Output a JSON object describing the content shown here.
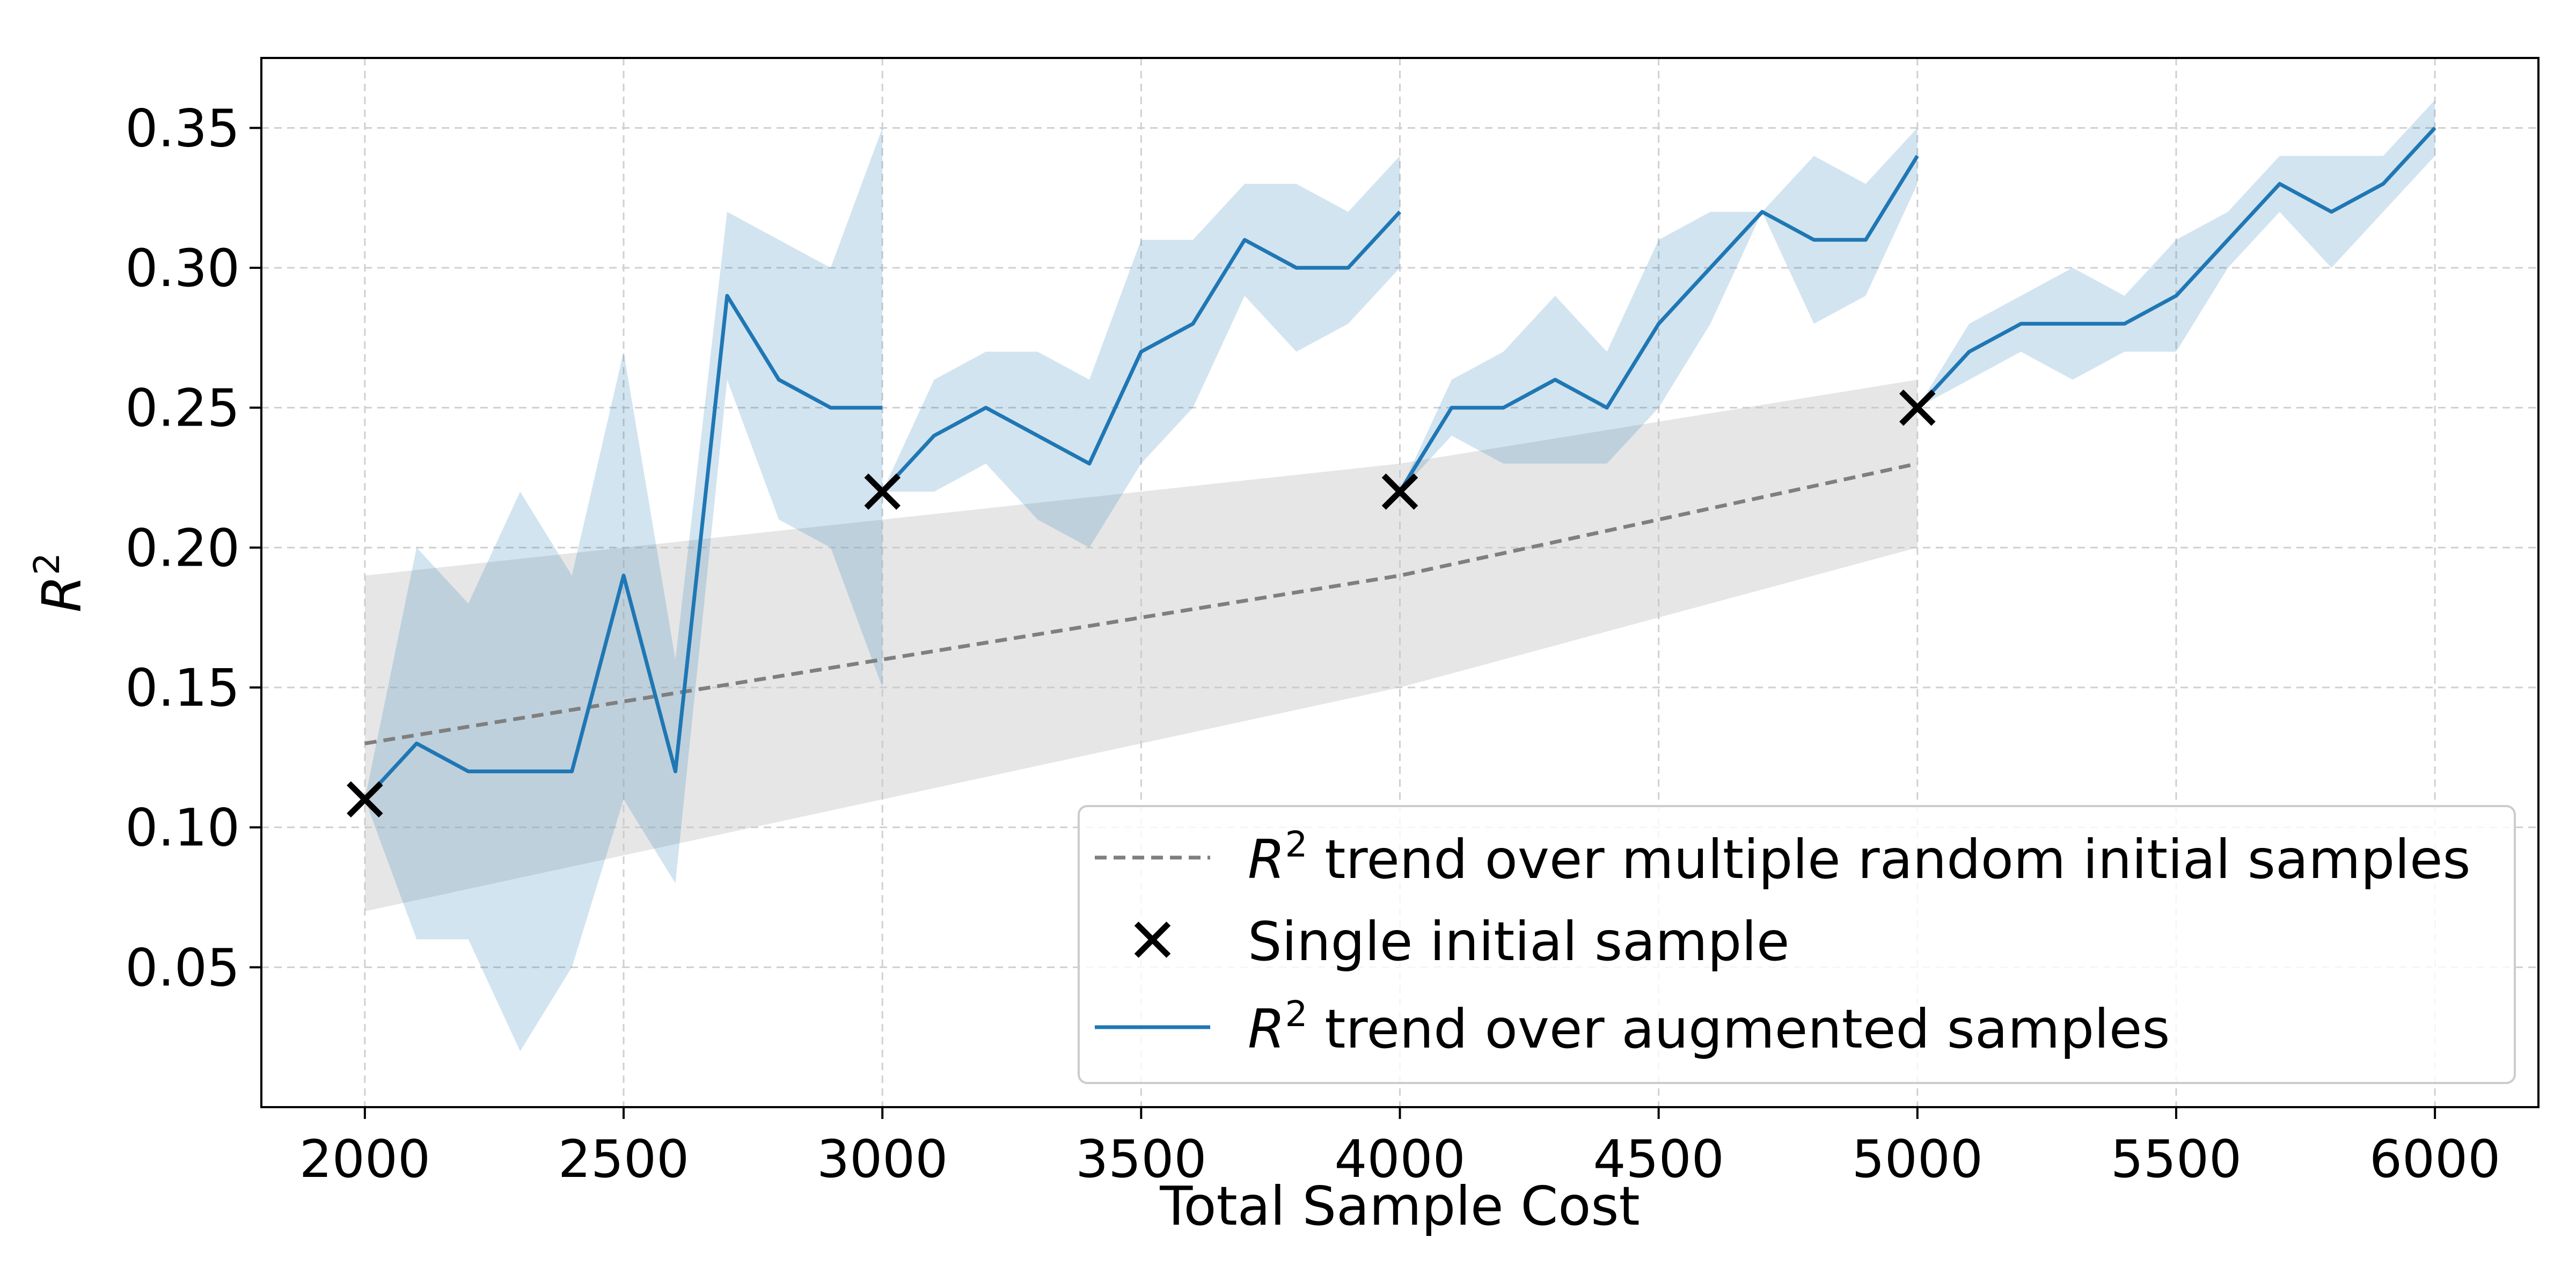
{
  "chart_data": {
    "type": "line",
    "xlabel": "Total Sample Cost",
    "ylabel": "R",
    "ylabel_sup": "2",
    "xlim": [
      1800,
      6200
    ],
    "ylim": [
      0.0,
      0.375
    ],
    "xticks": [
      2000,
      2500,
      3000,
      3500,
      4000,
      4500,
      5000,
      5500,
      6000
    ],
    "xtick_labels": [
      "2000",
      "2500",
      "3000",
      "3500",
      "4000",
      "4500",
      "5000",
      "5500",
      "6000"
    ],
    "yticks": [
      0.05,
      0.1,
      0.15,
      0.2,
      0.25,
      0.3,
      0.35
    ],
    "ytick_labels": [
      "0.05",
      "0.10",
      "0.15",
      "0.20",
      "0.25",
      "0.30",
      "0.35"
    ],
    "grid": true,
    "legend_position": "lower-right",
    "colors": {
      "augmented": "#1f77b4",
      "augmented_band": "#1f77b4",
      "trend": "#7f7f7f",
      "trend_band": "#c8c8c8",
      "marker": "#000000"
    },
    "legend": [
      {
        "prefix": "R",
        "sup": "2",
        "suffix": " trend over multiple random initial samples"
      },
      {
        "prefix": "",
        "sup": "",
        "suffix": "Single initial sample"
      },
      {
        "prefix": "R",
        "sup": "2",
        "suffix": " trend over augmented samples"
      }
    ],
    "trend_series": {
      "x": [
        2000,
        3000,
        4000,
        5000
      ],
      "y": [
        0.13,
        0.16,
        0.19,
        0.23
      ],
      "lower": [
        0.07,
        0.11,
        0.15,
        0.2
      ],
      "upper": [
        0.19,
        0.21,
        0.23,
        0.26
      ]
    },
    "initial_samples": {
      "x": [
        2000,
        3000,
        4000,
        5000
      ],
      "y": [
        0.11,
        0.22,
        0.22,
        0.25
      ]
    },
    "augmented_segments": [
      {
        "x": [
          2000,
          2100,
          2200,
          2300,
          2400,
          2500,
          2600,
          2700,
          2800,
          2900,
          3000
        ],
        "y": [
          0.11,
          0.13,
          0.12,
          0.12,
          0.12,
          0.19,
          0.12,
          0.29,
          0.26,
          0.25,
          0.25
        ],
        "lower": [
          0.11,
          0.06,
          0.06,
          0.02,
          0.05,
          0.11,
          0.08,
          0.26,
          0.21,
          0.2,
          0.15
        ],
        "upper": [
          0.11,
          0.2,
          0.18,
          0.22,
          0.19,
          0.27,
          0.16,
          0.32,
          0.31,
          0.3,
          0.35
        ]
      },
      {
        "x": [
          3000,
          3100,
          3200,
          3300,
          3400,
          3500,
          3600,
          3700,
          3800,
          3900,
          4000
        ],
        "y": [
          0.22,
          0.24,
          0.25,
          0.24,
          0.23,
          0.27,
          0.28,
          0.31,
          0.3,
          0.3,
          0.32
        ],
        "lower": [
          0.22,
          0.22,
          0.23,
          0.21,
          0.2,
          0.23,
          0.25,
          0.29,
          0.27,
          0.28,
          0.3
        ],
        "upper": [
          0.22,
          0.26,
          0.27,
          0.27,
          0.26,
          0.31,
          0.31,
          0.33,
          0.33,
          0.32,
          0.34
        ]
      },
      {
        "x": [
          4000,
          4100,
          4200,
          4300,
          4400,
          4500,
          4600,
          4700,
          4800,
          4900,
          5000
        ],
        "y": [
          0.22,
          0.25,
          0.25,
          0.26,
          0.25,
          0.28,
          0.3,
          0.32,
          0.31,
          0.31,
          0.34
        ],
        "lower": [
          0.22,
          0.24,
          0.23,
          0.23,
          0.23,
          0.25,
          0.28,
          0.32,
          0.28,
          0.29,
          0.33
        ],
        "upper": [
          0.22,
          0.26,
          0.27,
          0.29,
          0.27,
          0.31,
          0.32,
          0.32,
          0.34,
          0.33,
          0.35
        ]
      },
      {
        "x": [
          5000,
          5100,
          5200,
          5300,
          5400,
          5500,
          5600,
          5700,
          5800,
          5900,
          6000
        ],
        "y": [
          0.25,
          0.27,
          0.28,
          0.28,
          0.28,
          0.29,
          0.31,
          0.33,
          0.32,
          0.33,
          0.35
        ],
        "lower": [
          0.25,
          0.26,
          0.27,
          0.26,
          0.27,
          0.27,
          0.3,
          0.32,
          0.3,
          0.32,
          0.34
        ],
        "upper": [
          0.25,
          0.28,
          0.29,
          0.3,
          0.29,
          0.31,
          0.32,
          0.34,
          0.34,
          0.34,
          0.36
        ]
      }
    ]
  }
}
